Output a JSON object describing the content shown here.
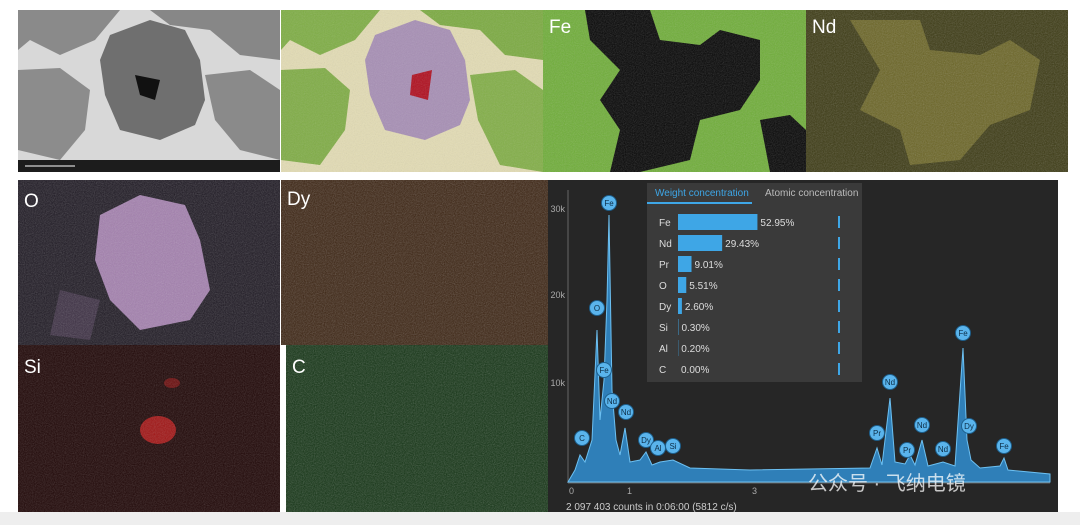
{
  "maps": [
    "Fe",
    "Nd",
    "O",
    "Dy",
    "Si",
    "C"
  ],
  "spectrum": {
    "tabs": [
      "Weight concentration",
      "Atomic concentration"
    ],
    "rows": [
      {
        "element": "Fe",
        "value": 52.95,
        "label": "52.95%"
      },
      {
        "element": "Nd",
        "value": 29.43,
        "label": "29.43%"
      },
      {
        "element": "Pr",
        "value": 9.01,
        "label": "9.01%"
      },
      {
        "element": "O",
        "value": 5.51,
        "label": "5.51%"
      },
      {
        "element": "Dy",
        "value": 2.6,
        "label": "2.60%"
      },
      {
        "element": "Si",
        "value": 0.3,
        "label": "0.30%"
      },
      {
        "element": "Al",
        "value": 0.2,
        "label": "0.20%"
      },
      {
        "element": "C",
        "value": 0.0,
        "label": "0.00%"
      }
    ],
    "yticks": [
      "30k",
      "20k",
      "10k"
    ],
    "xticks": [
      "0",
      "1",
      "3"
    ],
    "peaks": [
      "C",
      "O",
      "Fe",
      "Fe",
      "Nd",
      "Nd",
      "Dy",
      "Al",
      "Si",
      "Pr",
      "Nd",
      "Pr",
      "Nd",
      "Nd",
      "Fe",
      "Dy",
      "Fe"
    ],
    "footer": "2 097 403 counts in 0:06:00 (5812 c/s)"
  },
  "watermark": "公众号 · 飞纳电镜"
}
